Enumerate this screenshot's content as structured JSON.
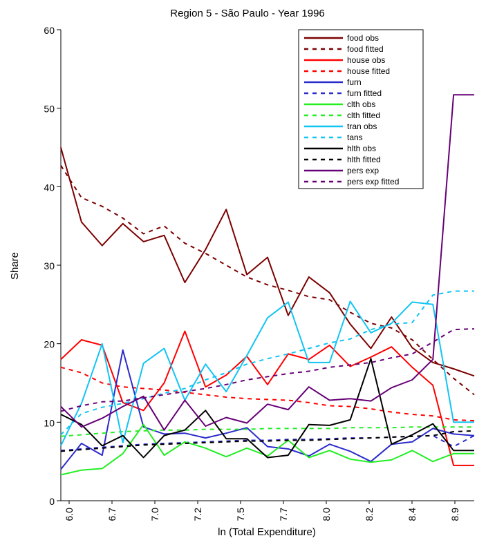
{
  "chart_data": {
    "type": "line",
    "title": "Region 5 - São Paulo - Year 1996",
    "xlabel": "ln (Total Expenditure)",
    "ylabel": "Share",
    "ylim": [
      0,
      60
    ],
    "y_ticks": [
      "0",
      "10",
      "20",
      "30",
      "40",
      "50",
      "60"
    ],
    "x_tick_labels": [
      "6.0",
      "6.7",
      "7.0",
      "7.2",
      "7.5",
      "7.7",
      "8.0",
      "8.2",
      "8.4",
      "8.9"
    ],
    "legend_position": "top-right",
    "x": [
      6.0,
      6.15,
      6.3,
      6.45,
      6.6,
      6.75,
      6.9,
      7.05,
      7.2,
      7.35,
      7.5,
      7.65,
      7.8,
      7.95,
      8.1,
      8.25,
      8.4,
      8.55,
      8.7,
      8.85,
      9.0
    ],
    "series": [
      {
        "name": "food obs",
        "color": "#7b0000",
        "dash": "solid",
        "values": [
          45,
          35.5,
          32.5,
          35.3,
          33,
          33.8,
          27.8,
          32,
          37.1,
          28.8,
          31,
          23.6,
          28.5,
          26.5,
          22.5,
          19.4,
          23.4,
          19.5,
          17.6,
          16.8,
          15.9
        ]
      },
      {
        "name": "food fitted",
        "color": "#7b0000",
        "dash": "dotted",
        "values": [
          42.7,
          38.6,
          37.5,
          36,
          34,
          35,
          32.8,
          31.5,
          30,
          28.5,
          27.5,
          26.8,
          26,
          25.6,
          24,
          22.6,
          22,
          20.5,
          18,
          15.6,
          13.5
        ]
      },
      {
        "name": "house obs",
        "color": "#ff0000",
        "dash": "solid",
        "values": [
          18,
          20.5,
          19.8,
          12.5,
          11.5,
          15,
          21.6,
          14.5,
          16,
          18.4,
          14.8,
          18.7,
          18,
          19.8,
          17.1,
          18.3,
          19.6,
          17,
          14.7,
          4.5,
          4.5
        ]
      },
      {
        "name": "house fitted",
        "color": "#ff0000",
        "dash": "dotted",
        "values": [
          17,
          16.3,
          15,
          14.5,
          14.3,
          14.1,
          13.8,
          13.5,
          13.2,
          13,
          12.9,
          12.8,
          12.5,
          12.1,
          12,
          11.7,
          11.3,
          11,
          10.8,
          10.3,
          10.2
        ]
      },
      {
        "name": "furn",
        "color": "#2b2bcc",
        "dash": "solid",
        "values": [
          4,
          7.3,
          5.8,
          19.2,
          9.4,
          8.5,
          8.6,
          8,
          8.6,
          9.3,
          6.9,
          6.6,
          5.7,
          7.2,
          6.3,
          5,
          7.2,
          7.5,
          9.2,
          8.5,
          8.3
        ]
      },
      {
        "name": "furn fitted",
        "color": "#2b2bcc",
        "dash": "dotted",
        "values": [
          6.4,
          6.6,
          6.8,
          7,
          7.2,
          7.3,
          7.4,
          7.5,
          7.6,
          7.7,
          7.7,
          7.8,
          7.8,
          7.9,
          8,
          8,
          8.1,
          8.2,
          8.3,
          6.9,
          8.3
        ]
      },
      {
        "name": "clth obs",
        "color": "#22ee22",
        "dash": "solid",
        "values": [
          3.3,
          3.9,
          4.1,
          6,
          9.7,
          5.8,
          7.5,
          6.7,
          5.6,
          6.7,
          5.7,
          7.7,
          5.5,
          6.4,
          5.3,
          4.9,
          5.2,
          6.4,
          5,
          6,
          6
        ]
      },
      {
        "name": "clth fitted",
        "color": "#22ee22",
        "dash": "dotted",
        "values": [
          8.2,
          8.4,
          8.6,
          8.8,
          8.9,
          9,
          9,
          9.1,
          9.1,
          9.1,
          9.2,
          9.2,
          9.2,
          9.2,
          9.3,
          9.3,
          9.3,
          9.4,
          9.4,
          9.4,
          9.4
        ]
      },
      {
        "name": "tran obs",
        "color": "#11c4f4",
        "dash": "solid",
        "values": [
          7,
          12.4,
          20,
          7.4,
          17.5,
          19.4,
          12.8,
          17.4,
          13.9,
          18.5,
          23.3,
          25.3,
          17.6,
          17.6,
          25.4,
          21.4,
          22.6,
          25.3,
          25,
          10,
          10
        ]
      },
      {
        "name": "tans",
        "color": "#11c4f4",
        "dash": "dotted",
        "values": [
          8.4,
          11.1,
          11.9,
          12.4,
          13,
          13.7,
          14.3,
          15.4,
          16.3,
          17.4,
          18.1,
          18.7,
          19.4,
          20.1,
          20.6,
          21.8,
          22.5,
          22.7,
          26.2,
          26.7,
          26.7
        ]
      },
      {
        "name": "hlth obs",
        "color": "#000000",
        "dash": "solid",
        "values": [
          11,
          9.7,
          7,
          8.3,
          5.5,
          8.3,
          9,
          11.5,
          7.9,
          7.9,
          5.5,
          5.8,
          9.7,
          9.6,
          10.3,
          18.1,
          7.2,
          8.4,
          9.8,
          6.4,
          6.4
        ]
      },
      {
        "name": "hlth fitted",
        "color": "#000000",
        "dash": "dotted",
        "values": [
          6.3,
          6.5,
          6.7,
          6.9,
          7.1,
          7.2,
          7.3,
          7.4,
          7.5,
          7.6,
          7.6,
          7.7,
          7.7,
          7.8,
          7.9,
          8,
          8.1,
          8.2,
          8.3,
          8.8,
          8.9
        ]
      },
      {
        "name": "pers exp",
        "color": "#660077",
        "dash": "solid",
        "values": [
          12,
          9.4,
          10.5,
          12,
          13.3,
          9,
          12.8,
          9.5,
          10.6,
          9.9,
          12.3,
          11.6,
          14.5,
          12.8,
          13,
          12.7,
          14.4,
          15.4,
          18,
          51.7,
          51.7
        ]
      },
      {
        "name": "pers exp fitted",
        "color": "#660077",
        "dash": "dotted",
        "values": [
          11.4,
          12.1,
          12.6,
          12.7,
          13.1,
          13.5,
          13.9,
          14.3,
          14.8,
          15.4,
          15.8,
          16.2,
          16.5,
          17,
          17.3,
          17.6,
          18.2,
          18.7,
          20.2,
          21.8,
          21.9
        ]
      }
    ]
  }
}
